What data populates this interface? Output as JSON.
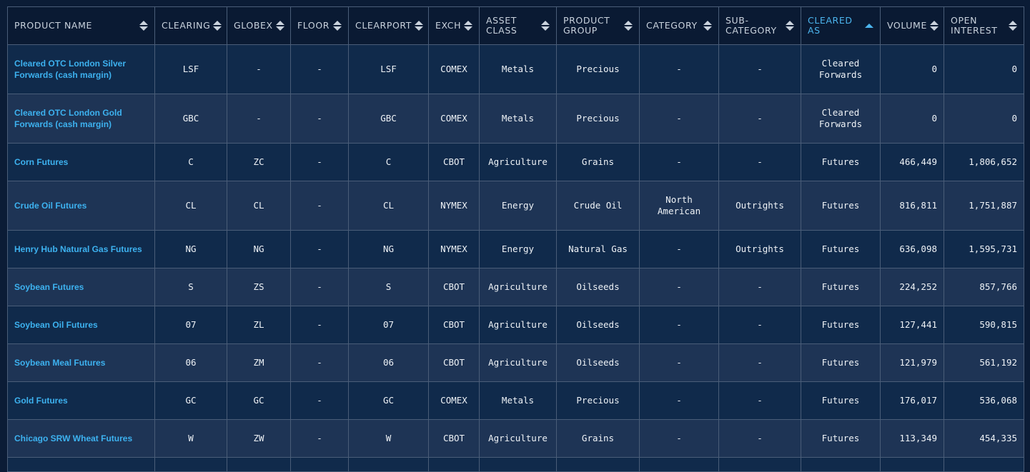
{
  "columns": [
    {
      "label": "PRODUCT NAME",
      "sort": "none"
    },
    {
      "label": "CLEARING",
      "sort": "none"
    },
    {
      "label": "GLOBEX",
      "sort": "none"
    },
    {
      "label": "FLOOR",
      "sort": "none"
    },
    {
      "label": "CLEARPORT",
      "sort": "none"
    },
    {
      "label": "EXCH",
      "sort": "none"
    },
    {
      "label": "ASSET CLASS",
      "sort": "none"
    },
    {
      "label": "PRODUCT GROUP",
      "sort": "none"
    },
    {
      "label": "CATEGORY",
      "sort": "none"
    },
    {
      "label": "SUB-CATEGORY",
      "sort": "none"
    },
    {
      "label": "CLEARED AS",
      "sort": "ascending"
    },
    {
      "label": "VOLUME",
      "sort": "none"
    },
    {
      "label": "OPEN INTEREST",
      "sort": "none"
    }
  ],
  "rows": [
    [
      "Cleared OTC London Silver Forwards (cash margin)",
      "LSF",
      "-",
      "-",
      "LSF",
      "COMEX",
      "Metals",
      "Precious",
      "-",
      "-",
      "Cleared Forwards",
      "0",
      "0"
    ],
    [
      "Cleared OTC London Gold Forwards (cash margin)",
      "GBC",
      "-",
      "-",
      "GBC",
      "COMEX",
      "Metals",
      "Precious",
      "-",
      "-",
      "Cleared Forwards",
      "0",
      "0"
    ],
    [
      "Corn Futures",
      "C",
      "ZC",
      "-",
      "C",
      "CBOT",
      "Agriculture",
      "Grains",
      "-",
      "-",
      "Futures",
      "466,449",
      "1,806,652"
    ],
    [
      "Crude Oil Futures",
      "CL",
      "CL",
      "-",
      "CL",
      "NYMEX",
      "Energy",
      "Crude Oil",
      "North American",
      "Outrights",
      "Futures",
      "816,811",
      "1,751,887"
    ],
    [
      "Henry Hub Natural Gas Futures",
      "NG",
      "NG",
      "-",
      "NG",
      "NYMEX",
      "Energy",
      "Natural Gas",
      "-",
      "Outrights",
      "Futures",
      "636,098",
      "1,595,731"
    ],
    [
      "Soybean Futures",
      "S",
      "ZS",
      "-",
      "S",
      "CBOT",
      "Agriculture",
      "Oilseeds",
      "-",
      "-",
      "Futures",
      "224,252",
      "857,766"
    ],
    [
      "Soybean Oil Futures",
      "07",
      "ZL",
      "-",
      "07",
      "CBOT",
      "Agriculture",
      "Oilseeds",
      "-",
      "-",
      "Futures",
      "127,441",
      "590,815"
    ],
    [
      "Soybean Meal Futures",
      "06",
      "ZM",
      "-",
      "06",
      "CBOT",
      "Agriculture",
      "Oilseeds",
      "-",
      "-",
      "Futures",
      "121,979",
      "561,192"
    ],
    [
      "Gold Futures",
      "GC",
      "GC",
      "-",
      "GC",
      "COMEX",
      "Metals",
      "Precious",
      "-",
      "-",
      "Futures",
      "176,017",
      "536,068"
    ],
    [
      "Chicago SRW Wheat Futures",
      "W",
      "ZW",
      "-",
      "W",
      "CBOT",
      "Agriculture",
      "Grains",
      "-",
      "-",
      "Futures",
      "113,349",
      "454,335"
    ]
  ],
  "colors": {
    "link": "#3db2f0",
    "active_header": "#4cb5ee",
    "row_a": "#102a4b",
    "row_b": "#1e3455"
  }
}
